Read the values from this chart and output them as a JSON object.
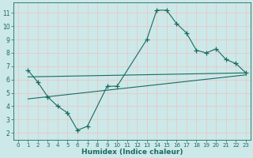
{
  "xlabel": "Humidex (Indice chaleur)",
  "ylabel": "",
  "bg_color": "#cce8e8",
  "grid_color": "#e8c8c8",
  "line_color": "#1a6b60",
  "xlim": [
    -0.5,
    23.5
  ],
  "ylim": [
    1.5,
    11.8
  ],
  "yticks": [
    2,
    3,
    4,
    5,
    6,
    7,
    8,
    9,
    10,
    11
  ],
  "xticks": [
    0,
    1,
    2,
    3,
    4,
    5,
    6,
    7,
    8,
    9,
    10,
    11,
    12,
    13,
    14,
    15,
    16,
    17,
    18,
    19,
    20,
    21,
    22,
    23
  ],
  "curve_x": [
    1,
    2,
    3,
    4,
    5,
    6,
    7,
    9,
    10,
    13,
    14,
    15,
    16,
    17,
    18,
    19,
    20,
    21,
    22,
    23
  ],
  "curve_y": [
    6.7,
    5.8,
    4.7,
    4.0,
    3.5,
    2.2,
    2.5,
    5.5,
    5.5,
    9.0,
    11.2,
    11.2,
    10.2,
    9.5,
    8.2,
    8.0,
    8.3,
    7.5,
    7.2,
    6.5
  ],
  "line1_x": [
    1,
    23
  ],
  "line1_y": [
    6.2,
    6.5
  ],
  "line2_x": [
    1,
    23
  ],
  "line2_y": [
    4.55,
    6.35
  ]
}
